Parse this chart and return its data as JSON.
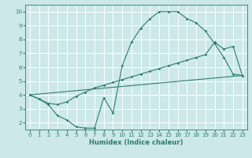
{
  "xlabel": "Humidex (Indice chaleur)",
  "bg_color": "#cce8e8",
  "line_color": "#2d7d6e",
  "grid_color": "#ffffff",
  "xlim": [
    -0.5,
    23.5
  ],
  "ylim": [
    1.5,
    10.5
  ],
  "yticks": [
    2,
    3,
    4,
    5,
    6,
    7,
    8,
    9,
    10
  ],
  "xticks": [
    0,
    1,
    2,
    3,
    4,
    5,
    6,
    7,
    8,
    9,
    10,
    11,
    12,
    13,
    14,
    15,
    16,
    17,
    18,
    19,
    20,
    21,
    22,
    23
  ],
  "curve1_x": [
    0,
    1,
    2,
    3,
    4,
    5,
    6,
    7,
    8,
    9,
    10,
    11,
    12,
    13,
    14,
    15,
    16,
    17,
    18,
    19,
    20,
    21,
    22,
    23
  ],
  "curve1_y": [
    4.0,
    3.7,
    3.3,
    2.5,
    2.2,
    1.7,
    1.6,
    1.6,
    3.8,
    2.7,
    6.1,
    7.8,
    8.8,
    9.5,
    10.0,
    10.0,
    10.0,
    9.5,
    9.2,
    8.6,
    7.7,
    6.7,
    5.5,
    5.4
  ],
  "curve2_x": [
    0,
    23
  ],
  "curve2_y": [
    4.0,
    5.4
  ],
  "curve3_x": [
    0,
    1,
    2,
    3,
    4,
    5,
    6,
    7,
    8,
    9,
    10,
    11,
    12,
    13,
    14,
    15,
    16,
    17,
    18,
    19,
    20,
    21,
    22,
    23
  ],
  "curve3_y": [
    4.0,
    3.7,
    3.4,
    3.3,
    3.5,
    3.9,
    4.2,
    4.5,
    4.7,
    4.9,
    5.1,
    5.3,
    5.5,
    5.7,
    5.9,
    6.1,
    6.3,
    6.5,
    6.7,
    6.9,
    7.8,
    7.3,
    7.5,
    5.4
  ],
  "tick_fontsize": 5,
  "xlabel_fontsize": 6,
  "lw": 0.8,
  "ms": 1.8
}
